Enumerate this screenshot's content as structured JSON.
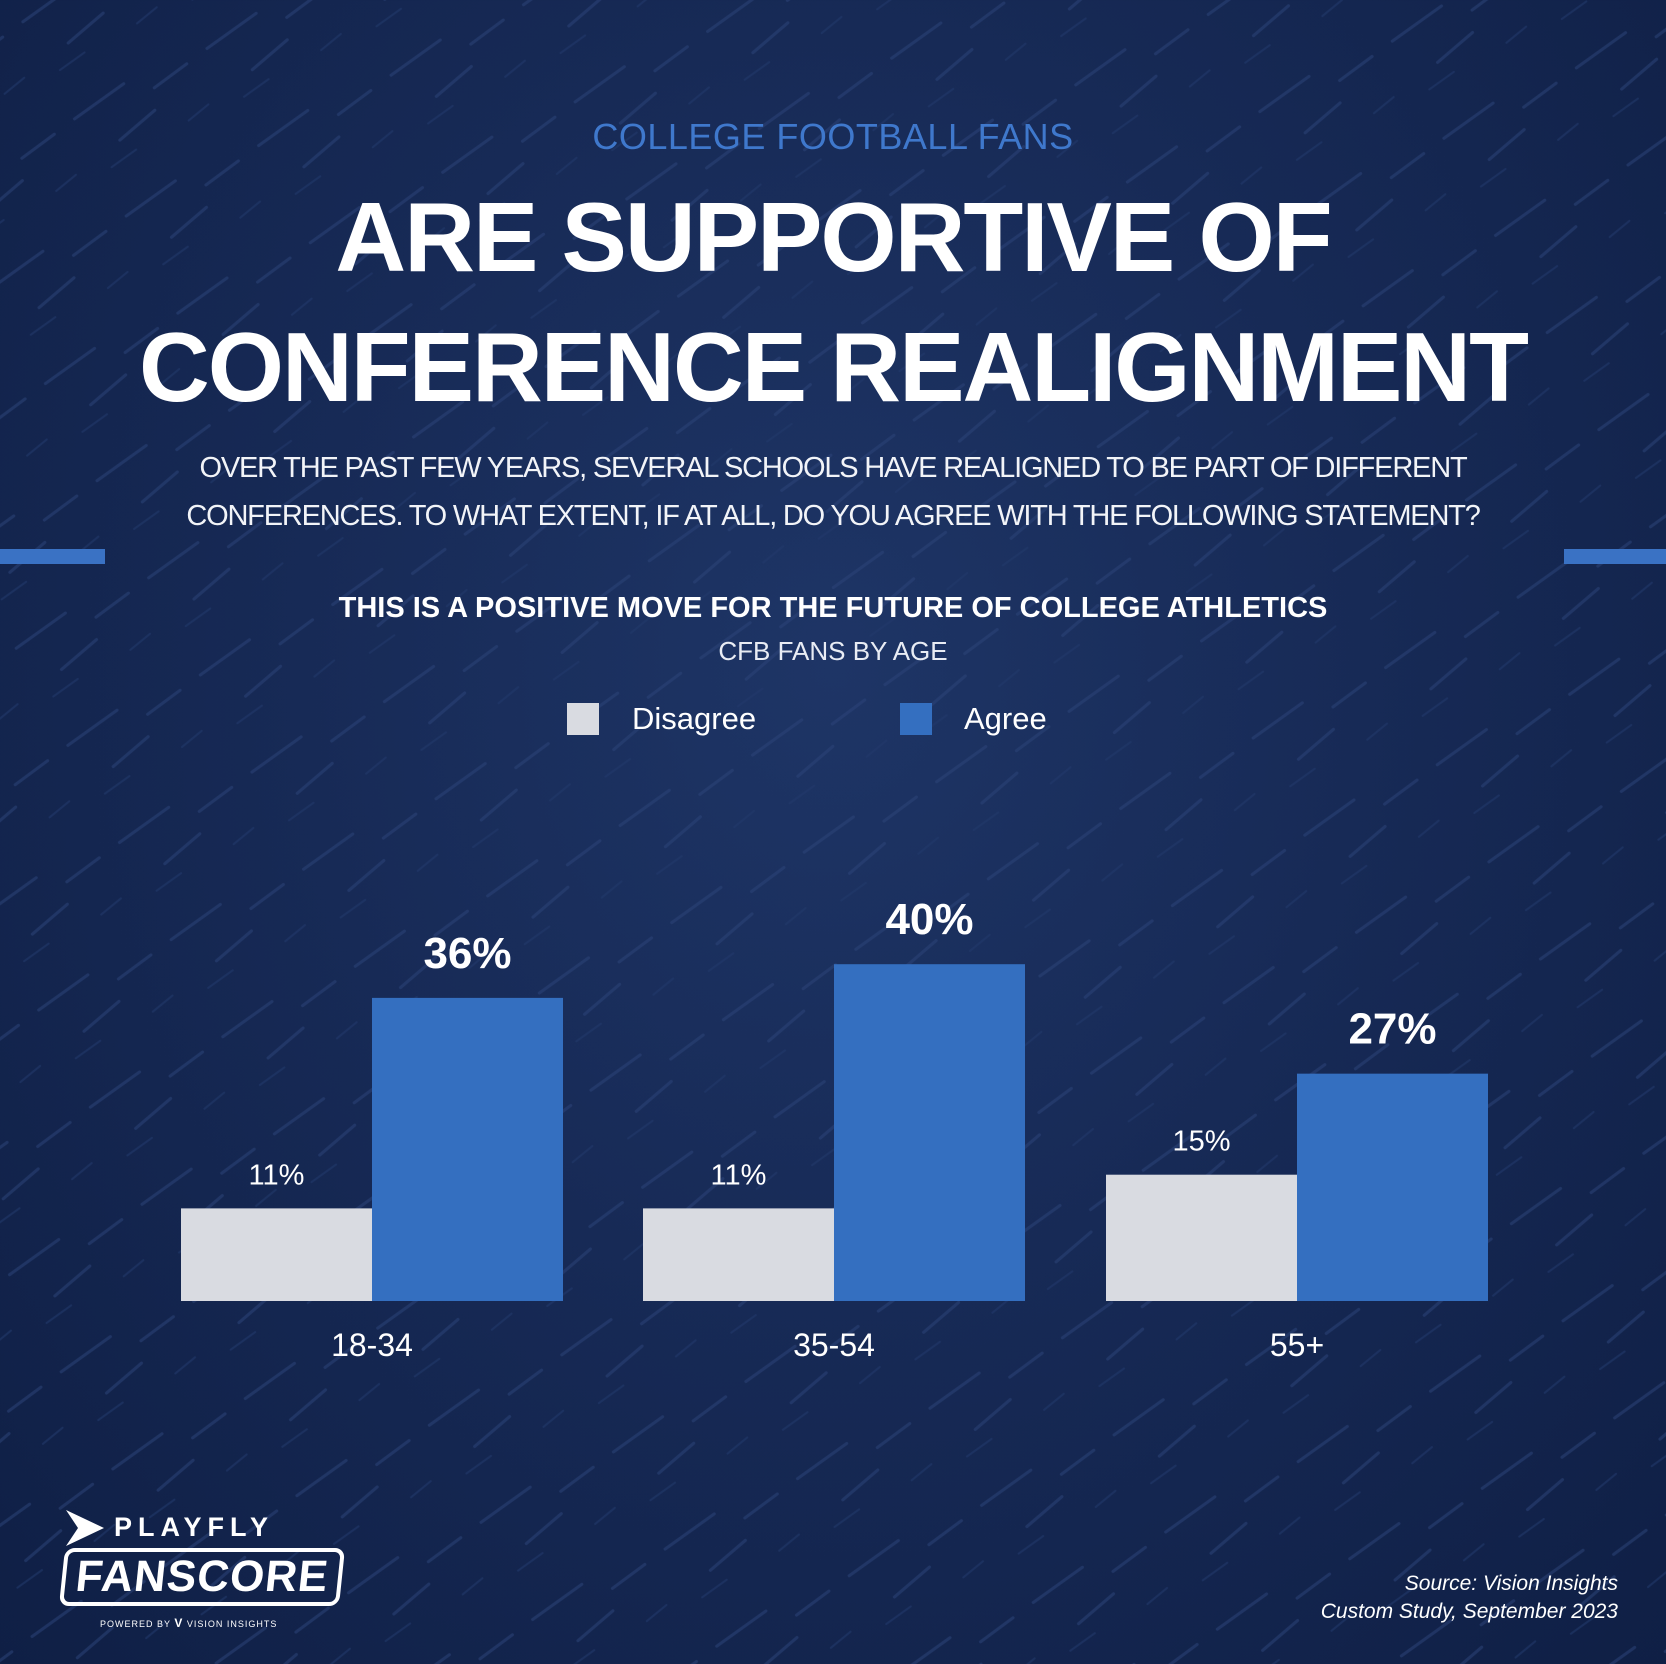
{
  "kicker": "COLLEGE FOOTBALL FANS",
  "headline": [
    "ARE SUPPORTIVE OF",
    "CONFERENCE REALIGNMENT"
  ],
  "question": [
    "OVER THE PAST FEW YEARS, SEVERAL SCHOOLS HAVE REALIGNED TO BE PART OF DIFFERENT",
    "CONFERENCES. TO WHAT EXTENT, IF AT ALL, DO YOU AGREE WITH THE FOLLOWING STATEMENT?"
  ],
  "colors": {
    "background": "#172a56",
    "accent": "#3f78cc",
    "disagree": "#d9dbe1",
    "agree": "#346fc0"
  },
  "chart_data": {
    "type": "bar",
    "title": "THIS IS A POSITIVE MOVE FOR THE FUTURE OF COLLEGE ATHLETICS",
    "subtitle": "CFB FANS BY AGE",
    "categories": [
      "18-34",
      "35-54",
      "55+"
    ],
    "series": [
      {
        "name": "Disagree",
        "values": [
          11,
          11,
          15
        ],
        "labels": [
          "11%",
          "11%",
          "15%"
        ]
      },
      {
        "name": "Agree",
        "values": [
          36,
          40,
          27
        ],
        "labels": [
          "36%",
          "40%",
          "27%"
        ]
      }
    ],
    "unit": "%",
    "ylim": [
      0,
      40
    ],
    "grid": false,
    "legend": "top-center"
  },
  "logo": {
    "brand": "PLAYFLY",
    "product": "FANSCORE",
    "powered_by": "POWERED BY",
    "partner": "VISION INSIGHTS"
  },
  "source": [
    "Source: Vision Insights",
    "Custom Study, September 2023"
  ]
}
